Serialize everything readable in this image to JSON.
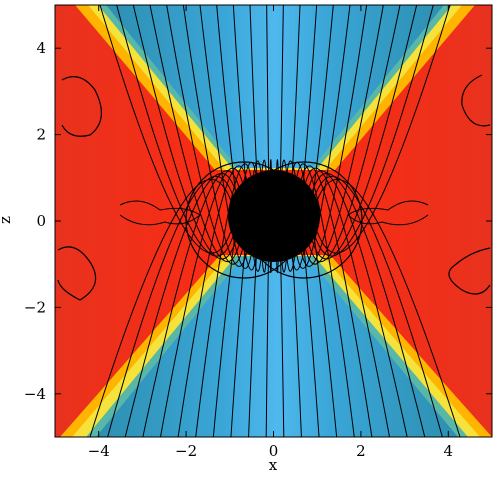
{
  "chart_data": {
    "type": "field",
    "xlabel": "x",
    "ylabel": "z",
    "xlim": [
      -5,
      5
    ],
    "ylim": [
      -5,
      5
    ],
    "xticks": [
      {
        "value": -4,
        "label": "−4"
      },
      {
        "value": -2,
        "label": "−2"
      },
      0,
      2,
      4
    ],
    "yticks": [
      {
        "value": -4,
        "label": "−4"
      },
      {
        "value": -2,
        "label": "−2"
      },
      0,
      2,
      4
    ]
  }
}
